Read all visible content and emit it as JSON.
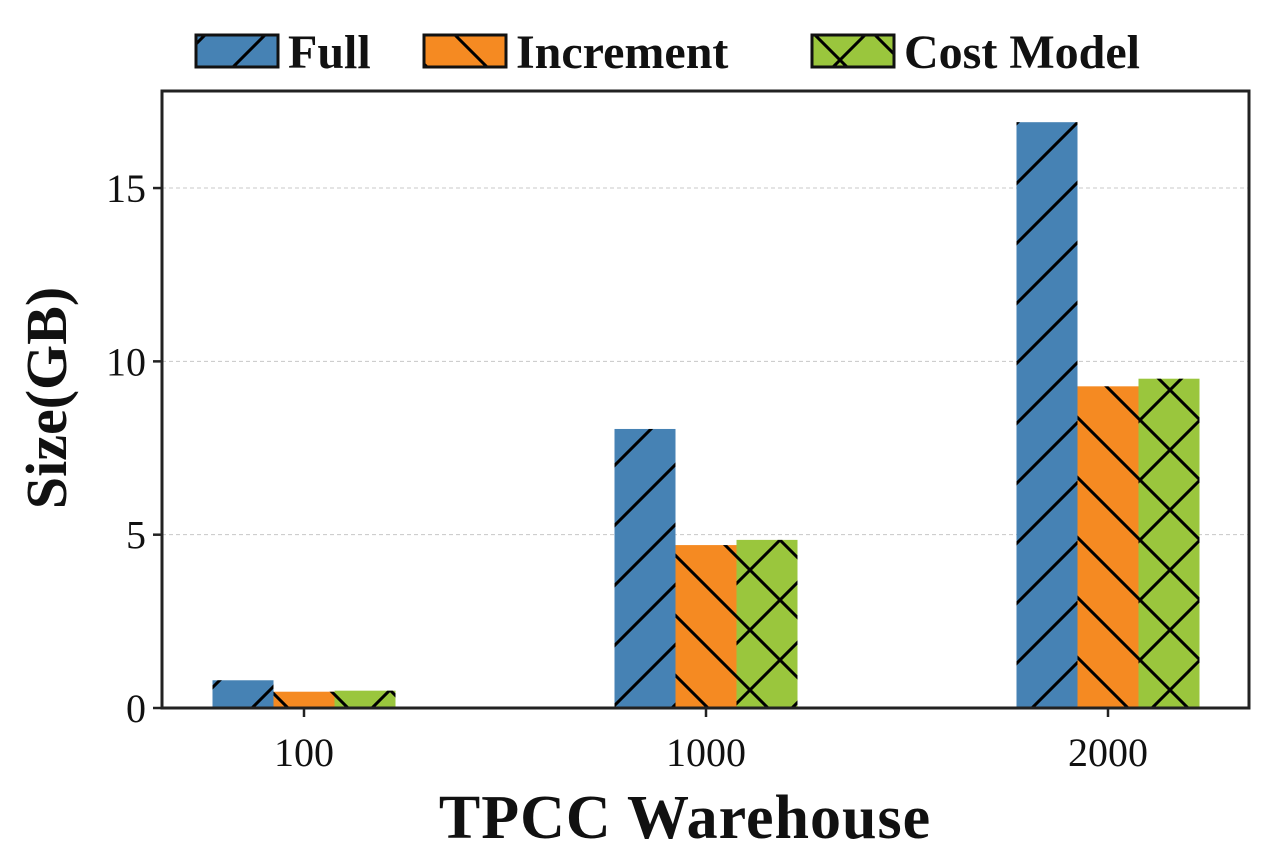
{
  "chart_data": {
    "type": "bar",
    "xlabel": "TPCC Warehouse",
    "ylabel": "Size(GB)",
    "categories": [
      "100",
      "1000",
      "2000"
    ],
    "ylim": [
      0,
      17.8
    ],
    "yticks": [
      0,
      5,
      10,
      15
    ],
    "ytick_labels": [
      "0",
      "5",
      "10",
      "15"
    ],
    "grid": "horizontal dashed",
    "legend_placement": "top",
    "series": [
      {
        "name": "Full",
        "values": [
          0.8,
          8.05,
          16.9
        ],
        "color": "#4682b4",
        "hatch": "forward-diagonal"
      },
      {
        "name": "Increment",
        "values": [
          0.47,
          4.7,
          9.28
        ],
        "color": "#f58a22",
        "hatch": "backward-diagonal"
      },
      {
        "name": "Cost Model",
        "values": [
          0.5,
          4.85,
          9.5
        ],
        "color": "#9ac63d",
        "hatch": "cross"
      }
    ]
  }
}
